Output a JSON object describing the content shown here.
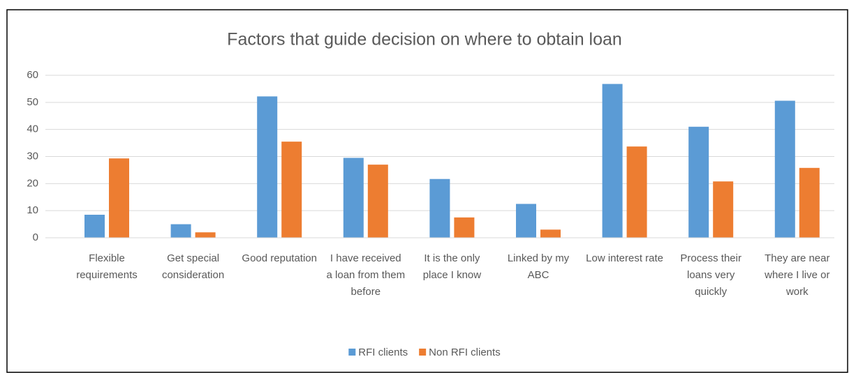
{
  "chart_data": {
    "type": "bar",
    "title": "Factors that guide decision on where to obtain loan",
    "categories": [
      "Flexible requirements",
      "Get special consideration",
      "Good reputation",
      "I have received a loan from them before",
      "It is the only place I know",
      "Linked by my ABC",
      "Low interest rate",
      "Process their loans very quickly",
      "They are near where I live or work"
    ],
    "series": [
      {
        "name": "RFI clients",
        "color": "#5b9bd5",
        "values": [
          8.5,
          5,
          52.2,
          29.5,
          21.7,
          12.5,
          56.8,
          41,
          50.6
        ]
      },
      {
        "name": "Non RFI clients",
        "color": "#ed7d31",
        "values": [
          29.3,
          2,
          35.5,
          27,
          7.5,
          3,
          33.7,
          20.8,
          25.8
        ]
      }
    ],
    "ylim": [
      0,
      60
    ],
    "yticks": [
      0,
      10,
      20,
      30,
      40,
      50,
      60
    ],
    "grid": true,
    "legend": "bottom"
  }
}
